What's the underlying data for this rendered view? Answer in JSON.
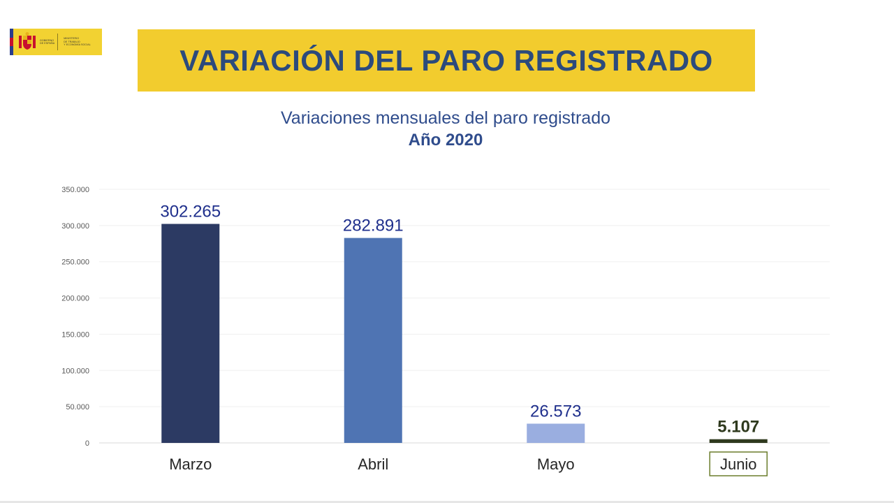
{
  "logo": {
    "line1": "GOBIERNO",
    "line2": "DE ESPAÑA",
    "line3": "MINISTERIO",
    "line4": "DE TRABAJO",
    "line5": "Y ECONOMÍA SOCIAL"
  },
  "banner": {
    "title": "VARIACIÓN DEL PARO REGISTRADO"
  },
  "chart_data": {
    "type": "bar",
    "title": "Variaciones mensuales del paro registrado",
    "subtitle": "Año 2020",
    "xlabel": "",
    "ylabel": "",
    "categories": [
      "Marzo",
      "Abril",
      "Mayo",
      "Junio"
    ],
    "values": [
      302265,
      282891,
      26573,
      5107
    ],
    "value_labels": [
      "302.265",
      "282.891",
      "26.573",
      "5.107"
    ],
    "ylim": [
      0,
      350000
    ],
    "yticks": [
      0,
      50000,
      100000,
      150000,
      200000,
      250000,
      300000,
      350000
    ],
    "ytick_labels": [
      "0",
      "50.000",
      "100.000",
      "150.000",
      "200.000",
      "250.000",
      "300.000",
      "350.000"
    ],
    "colors": [
      "#2c3a63",
      "#4f74b3",
      "#9aaee0",
      "#2f3a1e"
    ],
    "value_label_colors": [
      "#1f2f8c",
      "#1f2f8c",
      "#1f2f8c",
      "#2f3a1e"
    ],
    "grid": true,
    "legend": "none",
    "highlighted_category": "Junio",
    "highlight_color": "#6b7d2c"
  }
}
